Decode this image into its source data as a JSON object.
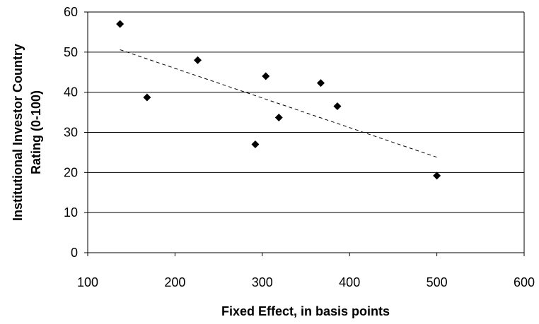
{
  "chart_data": {
    "type": "scatter",
    "title": "",
    "xlabel": "Fixed Effect, in basis points",
    "ylabel_lines": [
      "Institutional Investor Country",
      "Rating (0-100)"
    ],
    "xlim": [
      100,
      600
    ],
    "ylim": [
      0,
      60
    ],
    "x_ticks": [
      100,
      200,
      300,
      400,
      500,
      600
    ],
    "y_ticks": [
      0,
      10,
      20,
      30,
      40,
      50,
      60
    ],
    "grid": "horizontal",
    "series": [
      {
        "marker": "diamond",
        "color": "#000000",
        "points": [
          {
            "x": 137,
            "y": 57
          },
          {
            "x": 168,
            "y": 38.7
          },
          {
            "x": 226,
            "y": 48
          },
          {
            "x": 292,
            "y": 27
          },
          {
            "x": 304,
            "y": 44
          },
          {
            "x": 319,
            "y": 33.7
          },
          {
            "x": 367,
            "y": 42.3
          },
          {
            "x": 386,
            "y": 36.5
          },
          {
            "x": 500,
            "y": 19.2
          }
        ]
      }
    ],
    "trendline": {
      "style": "dashed",
      "color": "#000000",
      "x": [
        137,
        500
      ],
      "y": [
        50.6,
        23.8
      ]
    }
  }
}
